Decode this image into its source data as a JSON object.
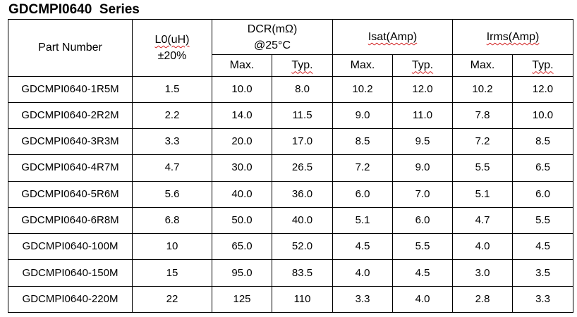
{
  "title": "GDCMPI0640  Series",
  "headers": {
    "part_number": "Part Number",
    "inductance_line1": "L0(uH)",
    "inductance_line2": "±20%",
    "dcr_line1": "DCR(mΩ)",
    "dcr_line2": "@25°C",
    "isat": "Isat(Amp)",
    "irms": "Irms(Amp)",
    "max": "Max.",
    "typ": "Typ."
  },
  "rows": [
    {
      "part": "GDCMPI0640-1R5M",
      "l0": "1.5",
      "dcr_max": "10.0",
      "dcr_typ": "8.0",
      "isat_max": "10.2",
      "isat_typ": "12.0",
      "irms_max": "10.2",
      "irms_typ": "12.0"
    },
    {
      "part": "GDCMPI0640-2R2M",
      "l0": "2.2",
      "dcr_max": "14.0",
      "dcr_typ": "11.5",
      "isat_max": "9.0",
      "isat_typ": "11.0",
      "irms_max": "7.8",
      "irms_typ": "10.0"
    },
    {
      "part": "GDCMPI0640-3R3M",
      "l0": "3.3",
      "dcr_max": "20.0",
      "dcr_typ": "17.0",
      "isat_max": "8.5",
      "isat_typ": "9.5",
      "irms_max": "7.2",
      "irms_typ": "8.5"
    },
    {
      "part": "GDCMPI0640-4R7M",
      "l0": "4.7",
      "dcr_max": "30.0",
      "dcr_typ": "26.5",
      "isat_max": "7.2",
      "isat_typ": "9.0",
      "irms_max": "5.5",
      "irms_typ": "6.5"
    },
    {
      "part": "GDCMPI0640-5R6M",
      "l0": "5.6",
      "dcr_max": "40.0",
      "dcr_typ": "36.0",
      "isat_max": "6.0",
      "isat_typ": "7.0",
      "irms_max": "5.1",
      "irms_typ": "6.0"
    },
    {
      "part": "GDCMPI0640-6R8M",
      "l0": "6.8",
      "dcr_max": "50.0",
      "dcr_typ": "40.0",
      "isat_max": "5.1",
      "isat_typ": "6.0",
      "irms_max": "4.7",
      "irms_typ": "5.5"
    },
    {
      "part": "GDCMPI0640-100M",
      "l0": "10",
      "dcr_max": "65.0",
      "dcr_typ": "52.0",
      "isat_max": "4.5",
      "isat_typ": "5.5",
      "irms_max": "4.0",
      "irms_typ": "4.5"
    },
    {
      "part": "GDCMPI0640-150M",
      "l0": "15",
      "dcr_max": "95.0",
      "dcr_typ": "83.5",
      "isat_max": "4.0",
      "isat_typ": "4.5",
      "irms_max": "3.0",
      "irms_typ": "3.5"
    },
    {
      "part": "GDCMPI0640-220M",
      "l0": "22",
      "dcr_max": "125",
      "dcr_typ": "110",
      "isat_max": "3.3",
      "isat_typ": "4.0",
      "irms_max": "2.8",
      "irms_typ": "3.3"
    }
  ]
}
